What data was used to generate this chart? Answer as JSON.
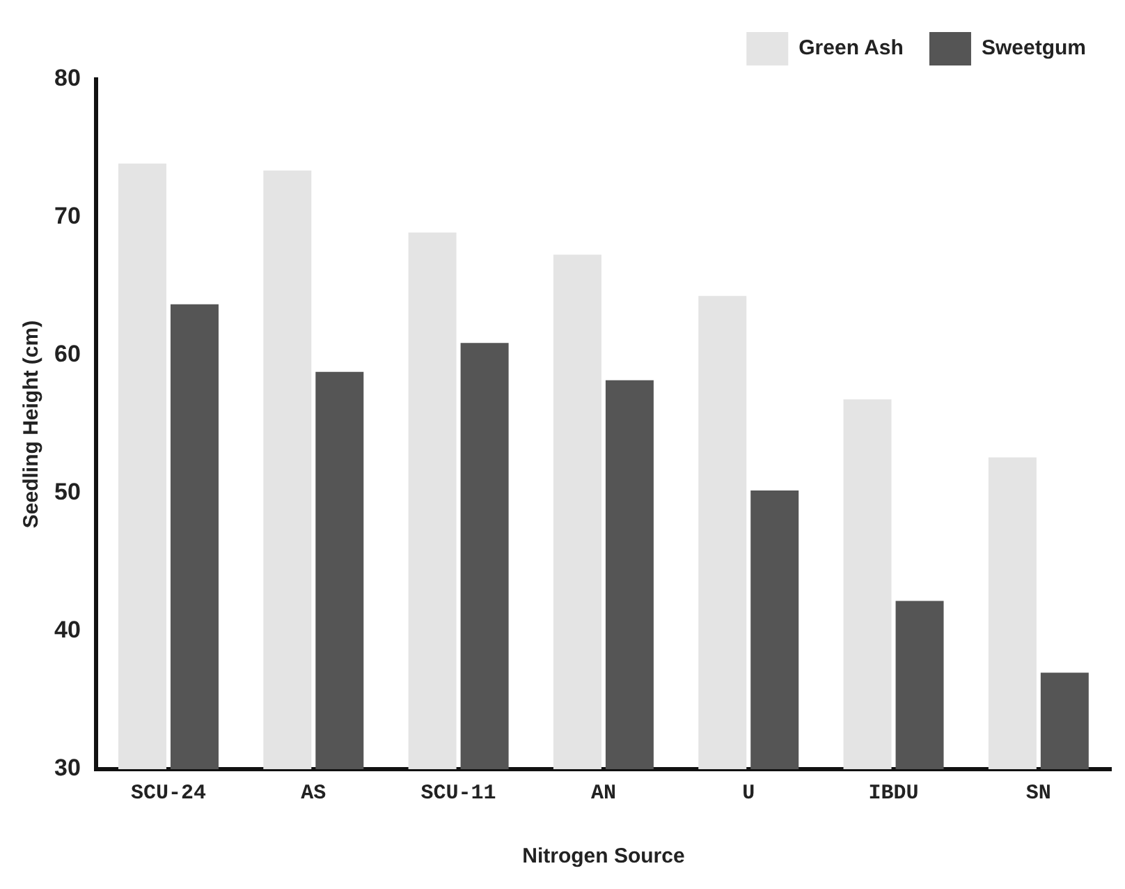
{
  "chart_data": {
    "type": "bar",
    "xlabel": "Nitrogen Source",
    "ylabel": "Seedling Height (cm)",
    "categories": [
      "SCU-24",
      "AS",
      "SCU-11",
      "AN",
      "U",
      "IBDU",
      "SN"
    ],
    "series": [
      {
        "name": "Green Ash",
        "color": "#e4e4e4",
        "values": [
          73.9,
          73.4,
          68.9,
          67.3,
          64.3,
          56.8,
          52.6
        ]
      },
      {
        "name": "Sweetgum",
        "color": "#555555",
        "values": [
          63.7,
          58.8,
          60.9,
          58.2,
          50.2,
          42.2,
          37.0
        ]
      }
    ],
    "ylim": [
      30,
      80
    ],
    "yticks": [
      30,
      40,
      50,
      60,
      70,
      80
    ],
    "grid": false,
    "legend": "top right"
  }
}
